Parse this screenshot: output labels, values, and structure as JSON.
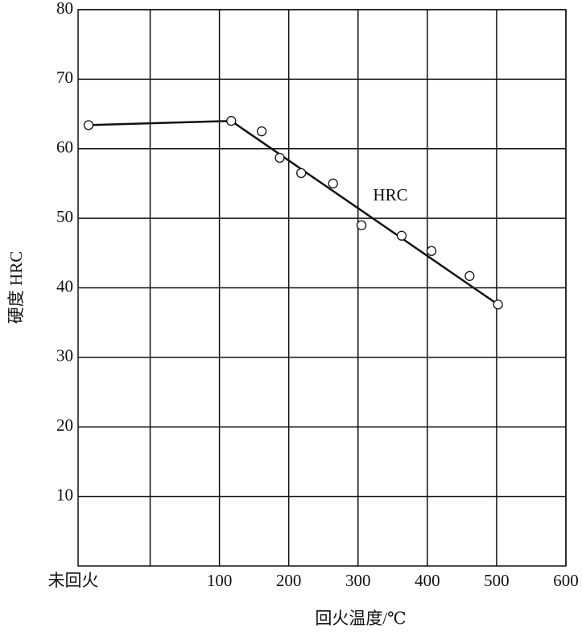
{
  "chart_data": {
    "type": "scatter",
    "xlabel": "回火温度/℃",
    "ylabel": "硬度 HRC",
    "annotation": "HRC",
    "xlim": [
      -104,
      600
    ],
    "ylim": [
      0,
      80
    ],
    "xticks": [
      100,
      200,
      300,
      400,
      500,
      600
    ],
    "xgrid": [
      0,
      100,
      200,
      300,
      400,
      500,
      600
    ],
    "yticks": [
      10,
      20,
      30,
      40,
      50,
      60,
      70,
      80
    ],
    "grid": true,
    "untempered": {
      "label": "未回火",
      "value": 63.4
    },
    "series": [
      {
        "x": [
          117,
          161,
          187,
          218,
          264,
          305,
          363,
          406,
          461,
          502
        ],
        "values": [
          64.0,
          62.5,
          58.7,
          56.5,
          55.0,
          49.0,
          47.5,
          45.3,
          41.7,
          37.6
        ]
      }
    ],
    "fit": {
      "x": [
        117,
        502
      ],
      "values": [
        64.0,
        37.6
      ]
    }
  }
}
